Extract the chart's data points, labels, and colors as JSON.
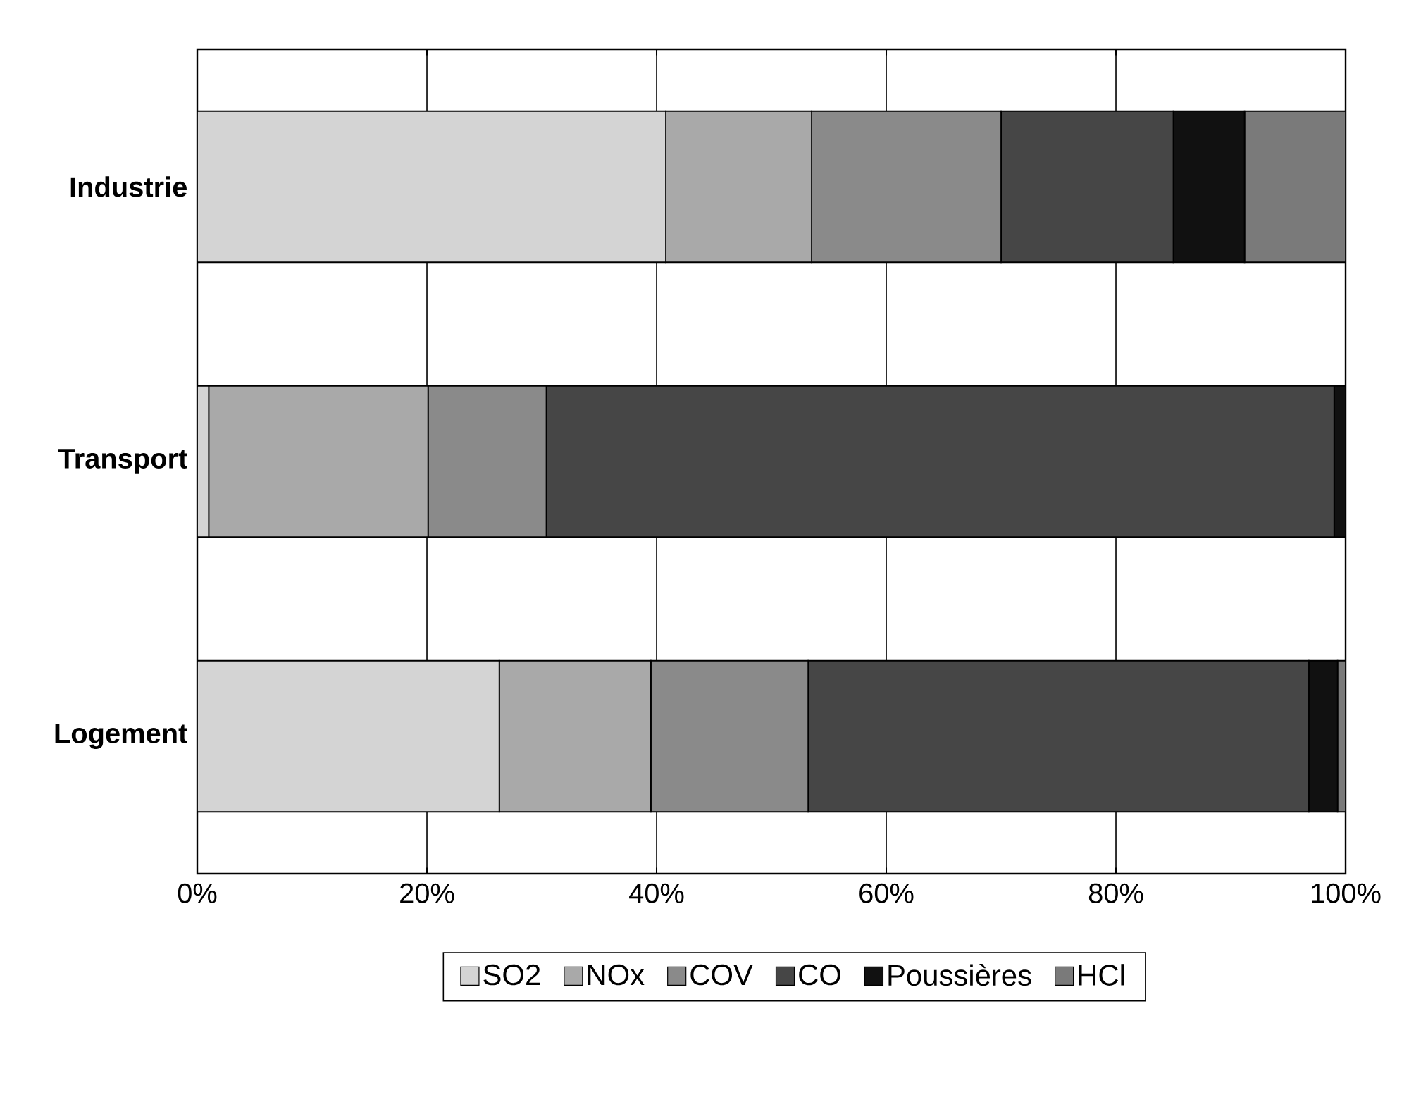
{
  "chart_data": {
    "type": "bar",
    "orientation": "horizontal",
    "stacked": true,
    "categories": [
      "Industrie",
      "Transport",
      "Logement"
    ],
    "series": [
      {
        "name": "SO2",
        "color": "#d4d4d4",
        "values": [
          40.8,
          1.0,
          26.3
        ]
      },
      {
        "name": "NOx",
        "color": "#a9a9a9",
        "values": [
          12.7,
          19.1,
          13.2
        ]
      },
      {
        "name": "COV",
        "color": "#8a8a8a",
        "values": [
          16.5,
          10.3,
          13.7
        ]
      },
      {
        "name": "CO",
        "color": "#464646",
        "values": [
          15.0,
          68.6,
          43.6
        ]
      },
      {
        "name": "Poussières",
        "color": "#111111",
        "values": [
          6.2,
          1.0,
          2.5
        ]
      },
      {
        "name": "HCl",
        "color": "#7a7a7a",
        "values": [
          8.8,
          0,
          0.7
        ]
      }
    ],
    "xlim": [
      0,
      100
    ],
    "xticks": [
      {
        "value": 0,
        "label": "0%"
      },
      {
        "value": 20,
        "label": "20%"
      },
      {
        "value": 40,
        "label": "40%"
      },
      {
        "value": 60,
        "label": "60%"
      },
      {
        "value": 80,
        "label": "80%"
      },
      {
        "value": 100,
        "label": "100%"
      }
    ],
    "grid": "x",
    "legend": "bottom"
  }
}
